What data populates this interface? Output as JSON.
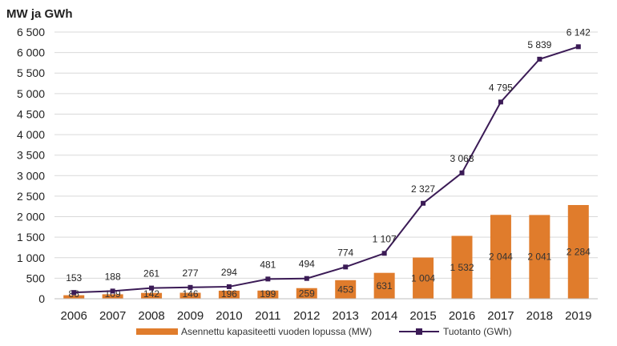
{
  "chart_data": {
    "type": "bar+line",
    "title": "",
    "ylabel": "MW ja GWh",
    "xlabel": "",
    "ylim": [
      0,
      6500
    ],
    "ytick_step": 500,
    "yticks": [
      "0",
      "500",
      "1 000",
      "1 500",
      "2 000",
      "2 500",
      "3 000",
      "3 500",
      "4 000",
      "4 500",
      "5 000",
      "5 500",
      "6 000",
      "6 500"
    ],
    "categories": [
      "2006",
      "2007",
      "2008",
      "2009",
      "2010",
      "2011",
      "2012",
      "2013",
      "2014",
      "2015",
      "2016",
      "2017",
      "2018",
      "2019"
    ],
    "grid": true,
    "legend_position": "bottom",
    "series": [
      {
        "name": "Asennettu kapasiteetti vuoden lopussa (MW)",
        "type": "bar",
        "color": "#E07C2C",
        "values": [
          86,
          109,
          142,
          146,
          196,
          199,
          259,
          453,
          631,
          1004,
          1532,
          2044,
          2041,
          2284
        ],
        "labels": [
          "86",
          "109",
          "142",
          "146",
          "196",
          "199",
          "259",
          "453",
          "631",
          "1 004",
          "1 532",
          "2 044",
          "2 041",
          "2 284"
        ]
      },
      {
        "name": "Tuotanto (GWh)",
        "type": "line",
        "color": "#3B1B56",
        "values": [
          153,
          188,
          261,
          277,
          294,
          481,
          494,
          774,
          1107,
          2327,
          3068,
          4795,
          5839,
          6142
        ],
        "labels": [
          "153",
          "188",
          "261",
          "277",
          "294",
          "481",
          "494",
          "774",
          "1 107",
          "2 327",
          "3 068",
          "4 795",
          "5 839",
          "6 142"
        ]
      }
    ]
  }
}
